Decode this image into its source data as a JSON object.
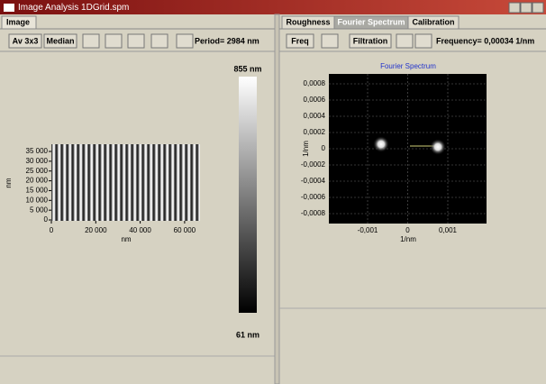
{
  "window": {
    "title": "Image Analysis 1DGrid.spm"
  },
  "left": {
    "tab": "Image",
    "toolbar": {
      "buttons": [
        "Av 3x3",
        "Median"
      ],
      "period": "Period= 2984 nm"
    },
    "image": {
      "yticks": [
        "35 000",
        "30 000",
        "25 000",
        "20 000",
        "15 000",
        "10 000",
        "5 000",
        "0"
      ],
      "ylabel": "nm",
      "xticks": [
        "0",
        "20 000",
        "40 000",
        "60 000"
      ],
      "xlabel": "nm"
    },
    "colorbar": {
      "max": "855 nm",
      "min": "61 nm"
    }
  },
  "right": {
    "tabs": [
      "Roughness",
      "Fourier Spectrum",
      "Calibration"
    ],
    "toolbar": {
      "buttons": [
        "Freq",
        "Filtration"
      ],
      "frequency": "Frequency= 0,00034 1/nm"
    },
    "plot": {
      "title": "Fourier Spectrum",
      "yticks": [
        "0,0008",
        "0,0006",
        "0,0004",
        "0,0002",
        "0",
        "-0,0002",
        "-0,0004",
        "-0,0006",
        "-0,0008"
      ],
      "ylabel": "1/nm",
      "xticks": [
        "-0,001",
        "0",
        "0,001"
      ],
      "xlabel": "1/nm"
    }
  }
}
